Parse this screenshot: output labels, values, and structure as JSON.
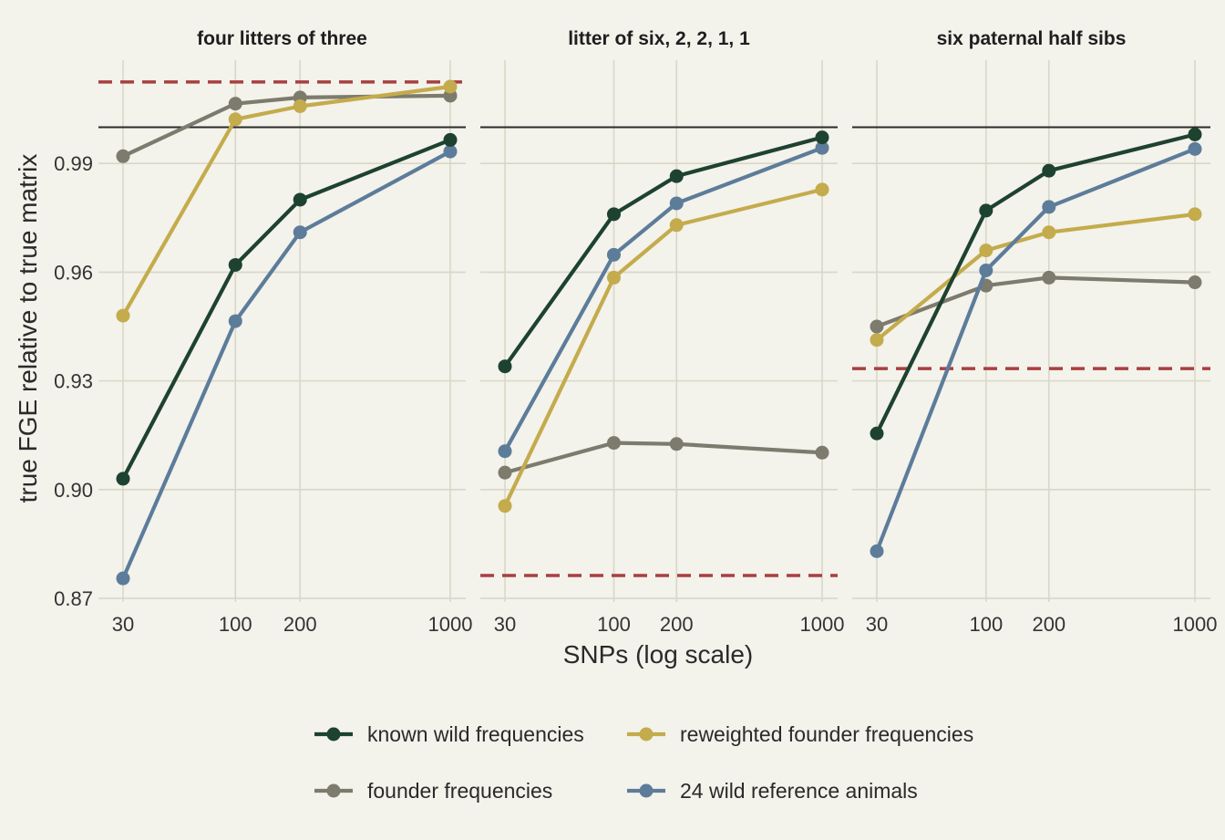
{
  "chart_data": {
    "type": "line",
    "xlabel": "SNPs (log scale)",
    "ylabel": "true FGE relative to true matrix",
    "x_scale": "log",
    "x_ticks": [
      30,
      100,
      200,
      1000
    ],
    "x_tick_labels": [
      "30",
      "100",
      "200",
      "1000"
    ],
    "y_ticks": [
      0.87,
      0.9,
      0.93,
      0.96,
      0.99
    ],
    "y_tick_labels": [
      "0.87",
      "0.90",
      "0.93",
      "0.96",
      "0.99"
    ],
    "ylim": [
      0.869,
      1.0185
    ],
    "grid": true,
    "legend_position": "bottom",
    "reference_line": 1.0,
    "colors": {
      "known wild frequencies": "#1e4230",
      "founder frequencies": "#7c7b6d",
      "reweighted founder frequencies": "#c4ab4c",
      "24 wild reference animals": "#5c7c9a",
      "reference_line": "#2a2a2a",
      "dashed_line": "#a84040",
      "grid": "#d9d8c6",
      "background": "#f3f2eb"
    },
    "legend": [
      "known wild frequencies",
      "reweighted founder frequencies",
      "founder frequencies",
      "24 wild reference animals"
    ],
    "panels": [
      {
        "title": "four litters of three",
        "dashed_y": 1.0125,
        "series": [
          {
            "name": "known wild frequencies",
            "x": [
              30,
              100,
              200,
              1000
            ],
            "y": [
              0.903,
              0.962,
              0.98,
              0.9965
            ]
          },
          {
            "name": "founder frequencies",
            "x": [
              30,
              100,
              200,
              1000
            ],
            "y": [
              0.992,
              1.0065,
              1.0082,
              1.0087
            ]
          },
          {
            "name": "reweighted founder frequencies",
            "x": [
              30,
              100,
              200,
              1000
            ],
            "y": [
              0.948,
              1.0022,
              1.0058,
              1.0112
            ]
          },
          {
            "name": "24 wild reference animals",
            "x": [
              30,
              100,
              200,
              1000
            ],
            "y": [
              0.8755,
              0.9465,
              0.971,
              0.9933
            ]
          }
        ]
      },
      {
        "title": "litter of six, 2, 2, 1, 1",
        "dashed_y": 0.8763,
        "series": [
          {
            "name": "known wild frequencies",
            "x": [
              30,
              100,
              200,
              1000
            ],
            "y": [
              0.934,
              0.976,
              0.9865,
              0.9972
            ]
          },
          {
            "name": "founder frequencies",
            "x": [
              30,
              100,
              200,
              1000
            ],
            "y": [
              0.9047,
              0.9129,
              0.9126,
              0.9102
            ]
          },
          {
            "name": "reweighted founder frequencies",
            "x": [
              30,
              100,
              200,
              1000
            ],
            "y": [
              0.8955,
              0.9585,
              0.973,
              0.9828
            ]
          },
          {
            "name": "24 wild reference animals",
            "x": [
              30,
              100,
              200,
              1000
            ],
            "y": [
              0.9106,
              0.9648,
              0.979,
              0.9943
            ]
          }
        ]
      },
      {
        "title": "six paternal half sibs",
        "dashed_y": 0.9334,
        "series": [
          {
            "name": "known wild frequencies",
            "x": [
              30,
              100,
              200,
              1000
            ],
            "y": [
              0.9155,
              0.977,
              0.988,
              0.998
            ]
          },
          {
            "name": "founder frequencies",
            "x": [
              30,
              100,
              200,
              1000
            ],
            "y": [
              0.945,
              0.9563,
              0.9585,
              0.9572
            ]
          },
          {
            "name": "reweighted founder frequencies",
            "x": [
              30,
              100,
              200,
              1000
            ],
            "y": [
              0.9413,
              0.966,
              0.971,
              0.976
            ]
          },
          {
            "name": "24 wild reference animals",
            "x": [
              30,
              100,
              200,
              1000
            ],
            "y": [
              0.883,
              0.9605,
              0.978,
              0.994
            ]
          }
        ]
      }
    ]
  }
}
